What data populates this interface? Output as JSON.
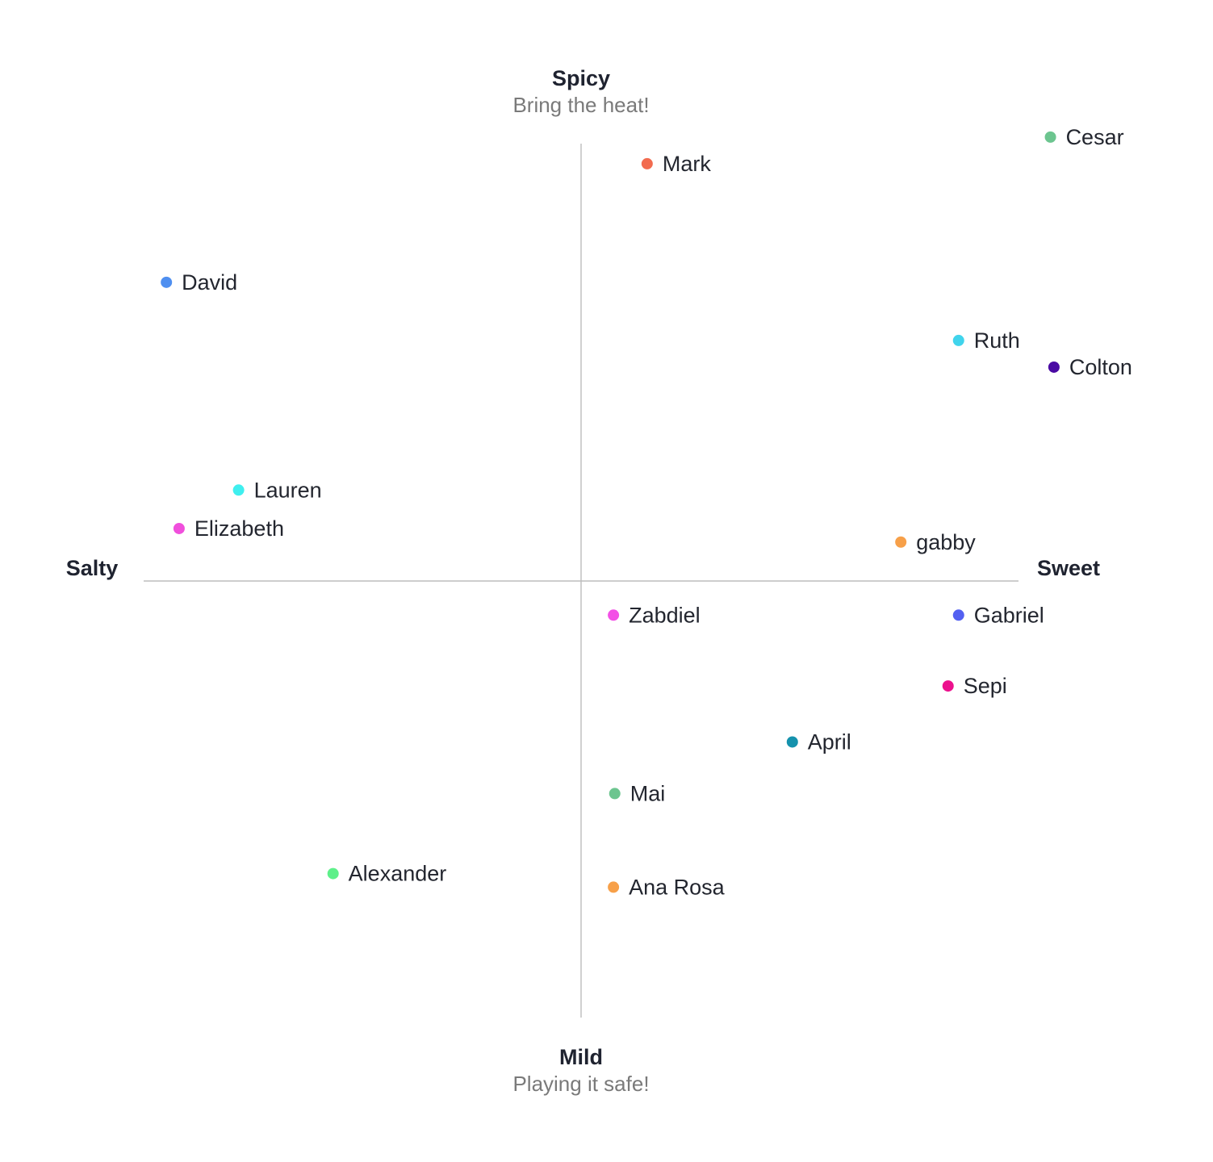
{
  "chart_data": {
    "type": "scatter",
    "quadrant_axes": {
      "top": {
        "label": "Spicy",
        "sublabel": "Bring the heat!"
      },
      "bottom": {
        "label": "Mild",
        "sublabel": "Playing it safe!"
      },
      "left": {
        "label": "Salty"
      },
      "right": {
        "label": "Sweet"
      }
    },
    "xlim": [
      -10,
      10
    ],
    "ylim": [
      -10,
      10
    ],
    "grid": false,
    "points": [
      {
        "name": "Cesar",
        "x": 10.73,
        "y": 10.15,
        "color": "#6cc58f"
      },
      {
        "name": "Mark",
        "x": 1.51,
        "y": 9.54,
        "color": "#f26b4f"
      },
      {
        "name": "David",
        "x": -9.48,
        "y": 6.83,
        "color": "#4f8ff0"
      },
      {
        "name": "Ruth",
        "x": 8.63,
        "y": 5.5,
        "color": "#40d4ec"
      },
      {
        "name": "Colton",
        "x": 10.81,
        "y": 4.89,
        "color": "#4a0aa3"
      },
      {
        "name": "Lauren",
        "x": -7.83,
        "y": 2.08,
        "color": "#3fefef"
      },
      {
        "name": "Elizabeth",
        "x": -9.19,
        "y": 1.2,
        "color": "#f04fdc"
      },
      {
        "name": "gabby",
        "x": 7.31,
        "y": 0.89,
        "color": "#f7a049"
      },
      {
        "name": "Zabdiel",
        "x": 0.74,
        "y": -0.78,
        "color": "#f350e6"
      },
      {
        "name": "Gabriel",
        "x": 8.63,
        "y": -0.78,
        "color": "#5360f1"
      },
      {
        "name": "Sepi",
        "x": 8.39,
        "y": -2.4,
        "color": "#ec118d"
      },
      {
        "name": "April",
        "x": 4.83,
        "y": -3.68,
        "color": "#1592ad"
      },
      {
        "name": "Mai",
        "x": 0.77,
        "y": -4.86,
        "color": "#6cc58f"
      },
      {
        "name": "Alexander",
        "x": -5.67,
        "y": -6.69,
        "color": "#5ef08a"
      },
      {
        "name": "Ana Rosa",
        "x": 0.74,
        "y": -7.0,
        "color": "#f7a049"
      }
    ]
  }
}
